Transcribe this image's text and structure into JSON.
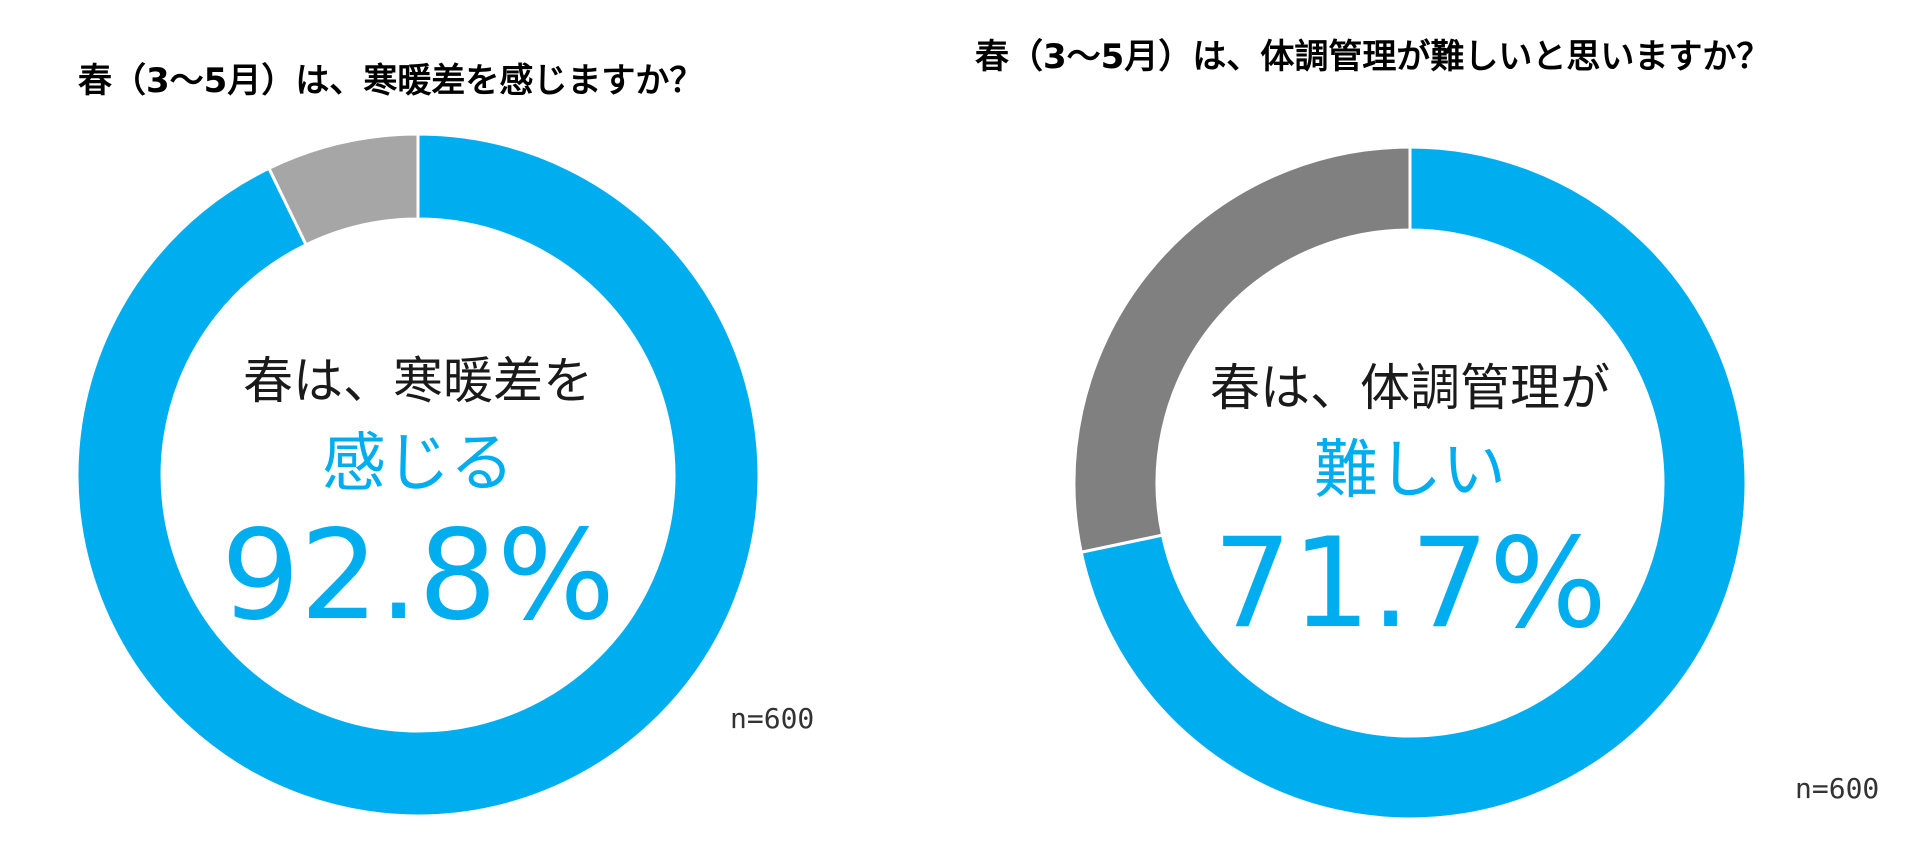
{
  "colors": {
    "primary": "#00AEEF",
    "secondary_left": "#A6A6A6",
    "secondary_right": "#808080",
    "label": "#1A1A1A"
  },
  "chart_data": [
    {
      "type": "pie",
      "title": "春（3～5月）は、寒暖差を感じますか？",
      "categories": [
        "感じる",
        "other"
      ],
      "values": [
        92.8,
        7.2
      ],
      "center_line1": "春は、寒暖差を",
      "center_line2": "感じる",
      "center_value": "92.8%",
      "sample_size": "n=600"
    },
    {
      "type": "pie",
      "title": "春（3～5月）は、体調管理が難しいと思いますか？",
      "categories": [
        "難しい",
        "other"
      ],
      "values": [
        71.7,
        28.3
      ],
      "center_line1": "春は、体調管理が",
      "center_line2": "難しい",
      "center_value": "71.7%",
      "sample_size": "n=600"
    }
  ]
}
